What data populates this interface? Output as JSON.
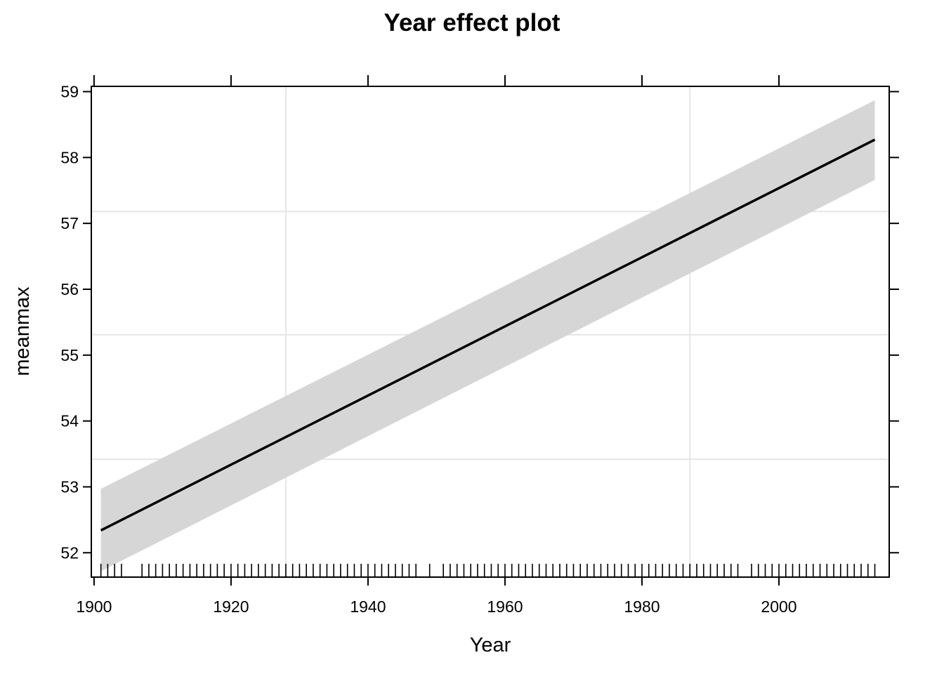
{
  "chart_data": {
    "type": "line",
    "title": "Year effect plot",
    "xlabel": "Year",
    "ylabel": "meanmax",
    "xlim": [
      1899.6,
      2016.1
    ],
    "ylim": [
      51.63,
      59.08
    ],
    "x_ticks": [
      1900,
      1920,
      1940,
      1960,
      1980,
      2000
    ],
    "y_ticks": [
      52,
      53,
      54,
      55,
      56,
      57,
      58,
      59
    ],
    "x_grid": [
      1928,
      1987
    ],
    "y_grid": [
      53.42,
      55.31,
      57.18
    ],
    "grid": true,
    "series": [
      {
        "x": [
          1901,
          2014
        ],
        "fit": [
          52.34,
          58.27
        ],
        "lower": [
          51.72,
          57.66
        ],
        "upper": [
          52.97,
          58.87
        ]
      }
    ],
    "rug_x": [
      1901,
      1902,
      1903,
      1904,
      1907,
      1908,
      1909,
      1910,
      1911,
      1912,
      1913,
      1914,
      1915,
      1916,
      1917,
      1918,
      1919,
      1920,
      1921,
      1922,
      1923,
      1924,
      1925,
      1926,
      1927,
      1928,
      1929,
      1930,
      1931,
      1932,
      1933,
      1934,
      1935,
      1936,
      1937,
      1938,
      1939,
      1940,
      1941,
      1942,
      1943,
      1944,
      1945,
      1946,
      1947,
      1949,
      1951,
      1952,
      1953,
      1954,
      1955,
      1956,
      1957,
      1958,
      1959,
      1960,
      1961,
      1962,
      1963,
      1964,
      1965,
      1966,
      1967,
      1968,
      1969,
      1970,
      1971,
      1972,
      1973,
      1974,
      1975,
      1976,
      1977,
      1978,
      1979,
      1980,
      1981,
      1982,
      1983,
      1984,
      1985,
      1986,
      1987,
      1988,
      1989,
      1990,
      1991,
      1992,
      1993,
      1994,
      1996,
      1997,
      1998,
      1999,
      2000,
      2001,
      2002,
      2003,
      2004,
      2005,
      2006,
      2007,
      2008,
      2009,
      2010,
      2011,
      2012,
      2013,
      2014
    ]
  }
}
